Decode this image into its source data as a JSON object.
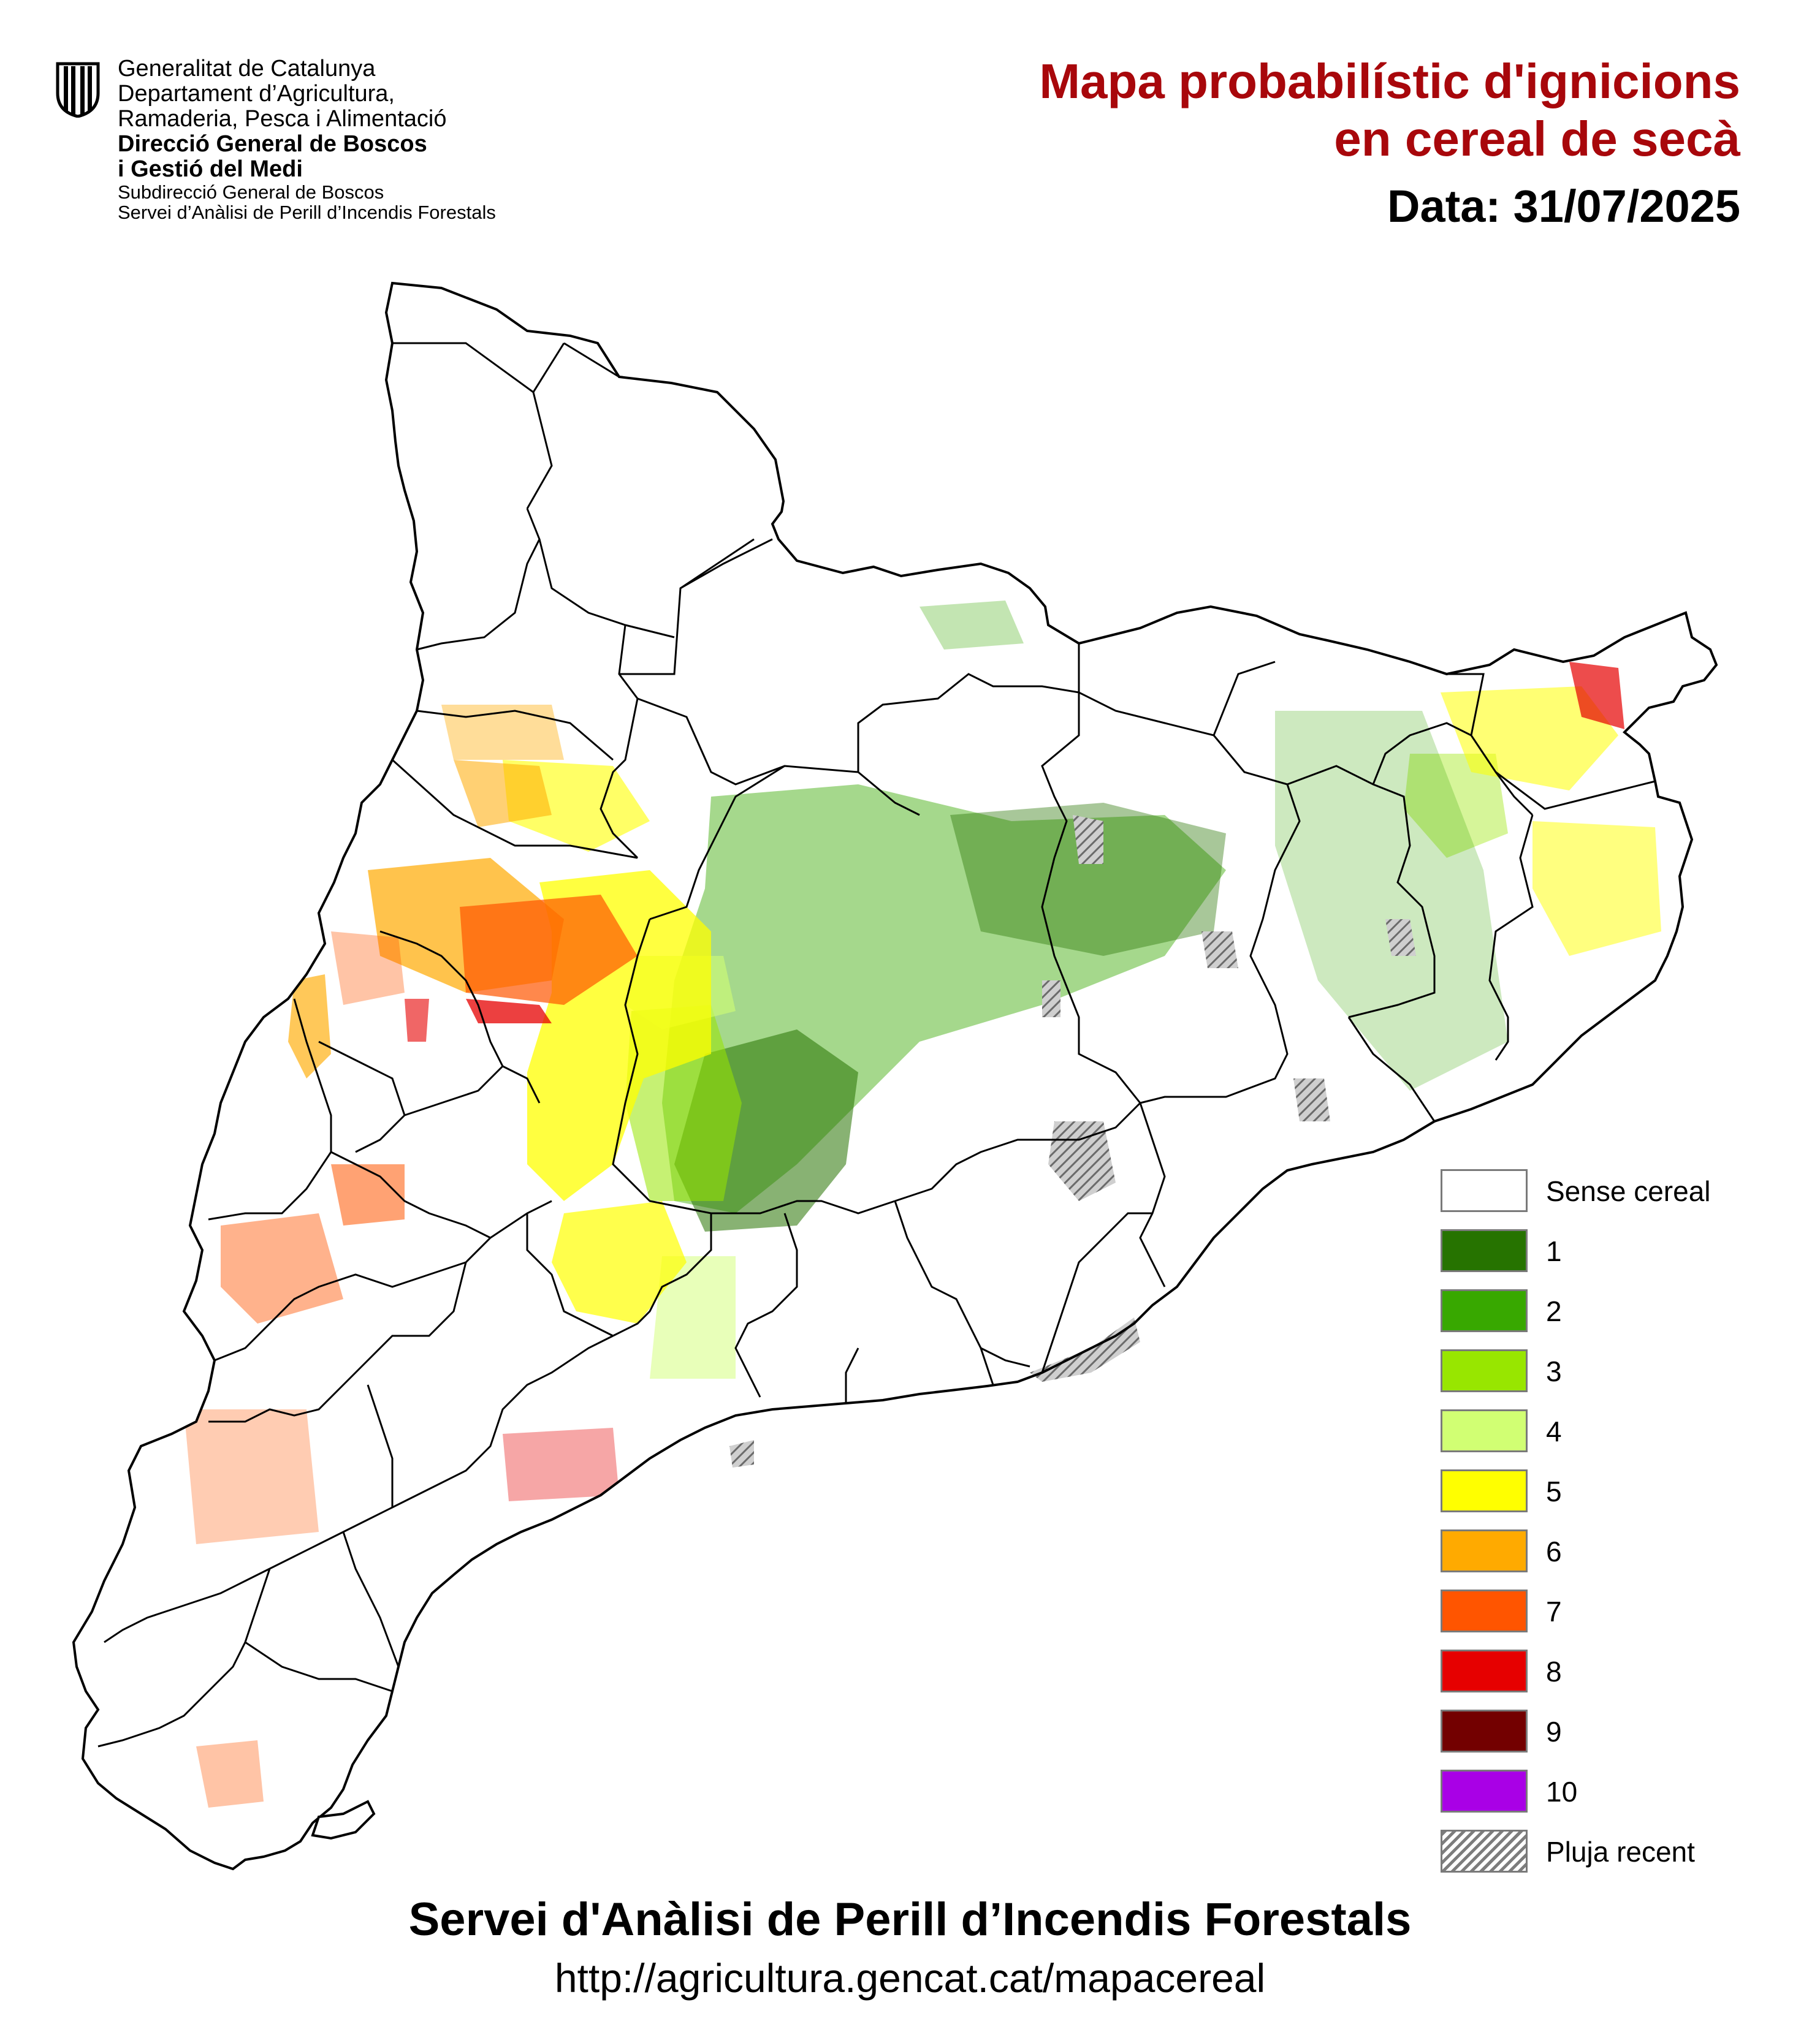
{
  "institution": {
    "lines": [
      "Generalitat de Catalunya",
      "Departament d’Agricultura,",
      "Ramaderia, Pesca i Alimentació"
    ],
    "bold_lines": [
      "Direcció General de Boscos",
      "i Gestió del Medi"
    ],
    "small_lines": [
      "Subdirecció General de Boscos",
      "Servei d’Anàlisi de Perill d’Incendis Forestals"
    ]
  },
  "title": {
    "line1": "Mapa probabilístic d'ignicions",
    "line2": "en cereal de secà",
    "date": "Data: 31/07/2025",
    "color": "#a8070b"
  },
  "legend": {
    "items": [
      {
        "label": "Sense cereal",
        "color": "#ffffff"
      },
      {
        "label": "1",
        "color": "#267300"
      },
      {
        "label": "2",
        "color": "#38a800"
      },
      {
        "label": "3",
        "color": "#98e600"
      },
      {
        "label": "4",
        "color": "#d1ff73"
      },
      {
        "label": "5",
        "color": "#ffff00"
      },
      {
        "label": "6",
        "color": "#ffaa00"
      },
      {
        "label": "7",
        "color": "#ff5500"
      },
      {
        "label": "8",
        "color": "#e60000"
      },
      {
        "label": "9",
        "color": "#730000"
      },
      {
        "label": "10",
        "color": "#a900e6"
      },
      {
        "label": "Pluja recent",
        "pattern": "hatch"
      }
    ]
  },
  "footer": {
    "title": "Servei d'Anàlisi de Perill d’Incendis Forestals",
    "url": "http://agricultura.gencat.cat/mapacereal"
  }
}
